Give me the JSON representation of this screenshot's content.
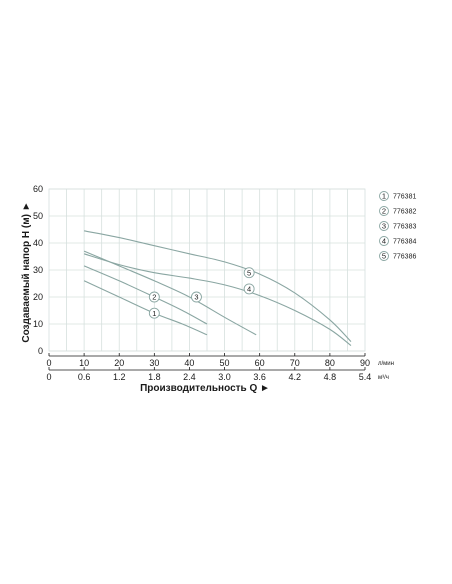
{
  "chart_data": {
    "type": "line",
    "title": "",
    "ylabel": "Создаваемый напор H (м) ►",
    "xlabel": "Производительность Q ►",
    "x_unit_top": "л/мин",
    "x_unit_bottom": "м³/ч",
    "ylim": [
      0,
      60
    ],
    "xlim": [
      0,
      90
    ],
    "y_ticks": [
      "0",
      "10",
      "20",
      "30",
      "40",
      "50",
      "60"
    ],
    "x_ticks_lpm": [
      "0",
      "10",
      "20",
      "30",
      "40",
      "50",
      "60",
      "70",
      "80",
      "90"
    ],
    "x_ticks_m3h": [
      "0",
      "0.6",
      "1.2",
      "1.8",
      "2.4",
      "3.0",
      "3.6",
      "4.2",
      "4.8",
      "5.4"
    ],
    "grid": true,
    "legend_position": "right",
    "series": [
      {
        "name": "776381",
        "number": "1",
        "x": [
          10,
          20,
          30,
          38,
          45
        ],
        "y": [
          26,
          20,
          14,
          10,
          6
        ]
      },
      {
        "name": "776382",
        "number": "2",
        "x": [
          10,
          20,
          30,
          38,
          45
        ],
        "y": [
          31.5,
          26,
          20,
          15,
          10
        ]
      },
      {
        "name": "776383",
        "number": "3",
        "x": [
          10,
          20,
          30,
          40,
          50,
          59
        ],
        "y": [
          37,
          31.5,
          26,
          20,
          12.5,
          6
        ]
      },
      {
        "name": "776384",
        "number": "4",
        "x": [
          10,
          20,
          30,
          40,
          50,
          60,
          70,
          80,
          86
        ],
        "y": [
          36,
          32,
          29,
          27,
          24.5,
          20.5,
          15,
          8,
          2
        ]
      },
      {
        "name": "776386",
        "number": "5",
        "x": [
          10,
          20,
          30,
          40,
          50,
          60,
          70,
          80,
          86
        ],
        "y": [
          44.5,
          42,
          39,
          36,
          33,
          28.5,
          21.5,
          11.5,
          3.5
        ]
      }
    ],
    "label_positions": [
      {
        "series": "1",
        "x": 30,
        "y": 14
      },
      {
        "series": "2",
        "x": 30,
        "y": 20
      },
      {
        "series": "3",
        "x": 42,
        "y": 20
      },
      {
        "series": "4",
        "x": 57,
        "y": 23
      },
      {
        "series": "5",
        "x": 57,
        "y": 29
      }
    ],
    "colors": {
      "line": "#8aa6a2",
      "grid": "#d6e0de",
      "axis": "#1a1a1a"
    }
  }
}
